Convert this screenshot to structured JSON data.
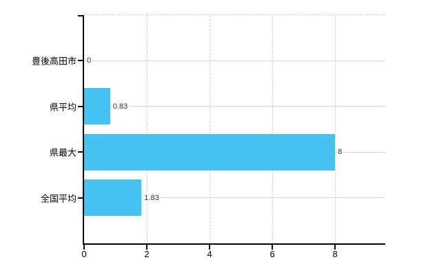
{
  "chart_data": {
    "type": "bar",
    "orientation": "horizontal",
    "title": "",
    "categories": [
      "豊後高田市",
      "県平均",
      "県最大",
      "全国平均"
    ],
    "values": [
      0,
      0.83,
      8,
      1.83
    ],
    "value_labels": [
      "0",
      "0.83",
      "8",
      "1.83"
    ],
    "x_ticks": [
      0,
      2,
      4,
      6,
      8
    ],
    "x_tick_labels": [
      "0",
      "2",
      "4",
      "6",
      "8"
    ],
    "xlim": [
      0,
      9.6
    ],
    "ylabel": "",
    "xlabel": "",
    "grid": "on",
    "legend_position": "none"
  },
  "colors": {
    "background": "#ffffff",
    "bar": "#45c2f0",
    "axis": "#000000",
    "grid_horizontal": "#d6d6d6",
    "grid_vertical_dashed": "#d0d0d0",
    "plot_top_dashed": "#cccccc",
    "value_label": "#333333",
    "tick_label": "#000000"
  }
}
